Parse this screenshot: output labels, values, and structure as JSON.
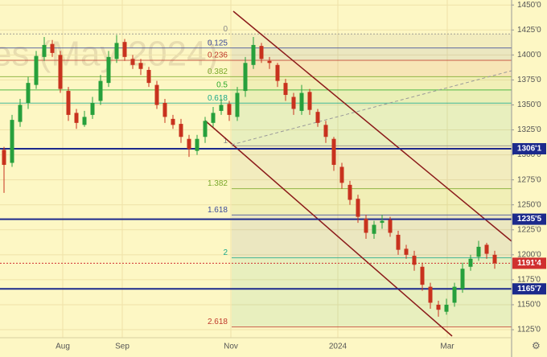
{
  "chart_data": {
    "type": "candlestick",
    "watermark": "es (May 2024)",
    "open": [
      1305,
      1292,
      1333,
      1352,
      1370,
      1398,
      1411,
      1400,
      1364,
      1342,
      1330,
      1340,
      1354,
      1372,
      1396,
      1413,
      1396,
      1392,
      1385,
      1370,
      1352,
      1336,
      1331,
      1316,
      1304,
      1318,
      1332,
      1344,
      1351,
      1338,
      1364,
      1390,
      1409,
      1394,
      1390,
      1372,
      1358,
      1344,
      1363,
      1343,
      1330,
      1316,
      1288,
      1270,
      1256,
      1236,
      1221,
      1232,
      1235,
      1220,
      1206,
      1199,
      1188,
      1168,
      1150,
      1143,
      1152,
      1166,
      1188,
      1198,
      1210,
      1200
    ],
    "high": [
      1308,
      1340,
      1356,
      1378,
      1404,
      1418,
      1415,
      1404,
      1368,
      1346,
      1344,
      1358,
      1380,
      1404,
      1420,
      1416,
      1400,
      1396,
      1388,
      1374,
      1356,
      1340,
      1336,
      1320,
      1320,
      1338,
      1348,
      1356,
      1354,
      1368,
      1398,
      1418,
      1412,
      1398,
      1392,
      1376,
      1362,
      1370,
      1366,
      1346,
      1334,
      1318,
      1292,
      1274,
      1260,
      1240,
      1234,
      1240,
      1238,
      1224,
      1210,
      1204,
      1192,
      1172,
      1154,
      1156,
      1172,
      1192,
      1200,
      1214,
      1212,
      1204
    ],
    "low": [
      1262,
      1288,
      1328,
      1346,
      1366,
      1394,
      1398,
      1362,
      1334,
      1326,
      1328,
      1336,
      1350,
      1368,
      1392,
      1394,
      1386,
      1380,
      1368,
      1346,
      1332,
      1326,
      1312,
      1298,
      1300,
      1312,
      1328,
      1340,
      1334,
      1334,
      1358,
      1386,
      1392,
      1386,
      1368,
      1354,
      1340,
      1340,
      1340,
      1328,
      1312,
      1284,
      1266,
      1250,
      1232,
      1216,
      1216,
      1226,
      1218,
      1200,
      1196,
      1184,
      1164,
      1146,
      1138,
      1140,
      1148,
      1162,
      1184,
      1194,
      1196,
      1186
    ],
    "close": [
      1290,
      1335,
      1350,
      1372,
      1399,
      1410,
      1402,
      1366,
      1340,
      1332,
      1338,
      1352,
      1374,
      1398,
      1412,
      1398,
      1390,
      1386,
      1372,
      1350,
      1338,
      1330,
      1318,
      1306,
      1316,
      1334,
      1342,
      1350,
      1340,
      1362,
      1392,
      1410,
      1396,
      1392,
      1374,
      1360,
      1346,
      1362,
      1345,
      1332,
      1318,
      1290,
      1272,
      1255,
      1238,
      1222,
      1230,
      1234,
      1222,
      1205,
      1200,
      1190,
      1170,
      1152,
      1145,
      1150,
      1168,
      1186,
      1196,
      1208,
      1201,
      1191.5
    ],
    "up_color": "#27a03c",
    "down_color": "#c8321e",
    "xtick_labels": [
      "Aug",
      "Sep",
      "Nov",
      "2024",
      "Mar"
    ],
    "ylim": [
      1117,
      1455
    ],
    "yticks": [
      {
        "value": 1125,
        "label": "1125'0"
      },
      {
        "value": 1150,
        "label": "1150'0"
      },
      {
        "value": 1175,
        "label": "1175'0"
      },
      {
        "value": 1200,
        "label": "1200'0"
      },
      {
        "value": 1225,
        "label": "1225'0"
      },
      {
        "value": 1250,
        "label": "1250'0"
      },
      {
        "value": 1275,
        "label": "1275'0"
      },
      {
        "value": 1300,
        "label": "1300'0"
      },
      {
        "value": 1325,
        "label": "1325'0"
      },
      {
        "value": 1350,
        "label": "1350'0"
      },
      {
        "value": 1375,
        "label": "1375'0"
      },
      {
        "value": 1400,
        "label": "1400'0"
      },
      {
        "value": 1425,
        "label": "1425'0"
      },
      {
        "value": 1450,
        "label": "1450'0"
      }
    ],
    "fib_levels": [
      {
        "ratio": 0,
        "price": 1421,
        "color": "#8a8a8a"
      },
      {
        "ratio": 0.125,
        "price": 1407,
        "color": "#3b4a9a"
      },
      {
        "ratio": 0.236,
        "price": 1394.6,
        "color": "#c0392b"
      },
      {
        "ratio": 0.382,
        "price": 1378.2,
        "color": "#7aa82a"
      },
      {
        "ratio": 0.5,
        "price": 1365,
        "color": "#2aa82a"
      },
      {
        "ratio": 0.618,
        "price": 1351.8,
        "color": "#1aa88a"
      },
      {
        "ratio": 1,
        "price": 1309,
        "color": "#8a8a8a"
      },
      {
        "ratio": 1.382,
        "price": 1266.2,
        "color": "#7aa82a"
      },
      {
        "ratio": 1.618,
        "price": 1239.8,
        "color": "#3b4a9a"
      },
      {
        "ratio": 2,
        "price": 1197,
        "color": "#1aa88a"
      },
      {
        "ratio": 2.618,
        "price": 1127.8,
        "color": "#c0392b"
      }
    ],
    "levels": [
      {
        "value": 1306.125,
        "label": "1306'1"
      },
      {
        "value": 1235.625,
        "label": "1235'5"
      },
      {
        "value": 1165.875,
        "label": "1165'7"
      }
    ],
    "level_color": "#1c2a8c",
    "last_price": {
      "value": 1191.5,
      "label": "1191'4"
    },
    "last_price_color": "#d03030"
  }
}
